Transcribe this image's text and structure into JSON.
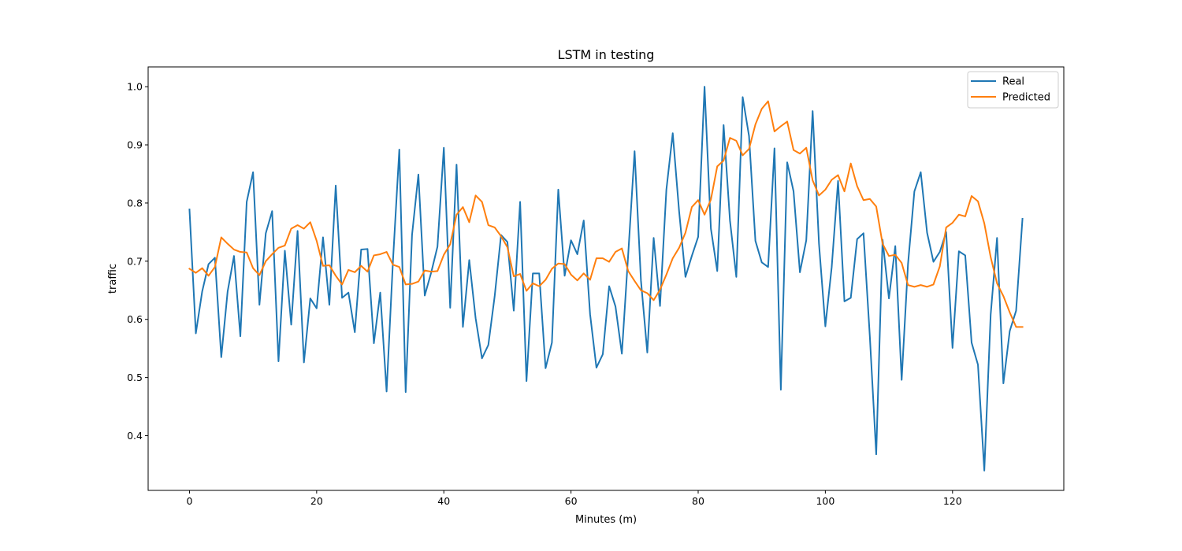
{
  "chart_data": {
    "type": "line",
    "title": "LSTM in testing",
    "xlabel": "Minutes (m)",
    "ylabel": "traffic",
    "xlim": [
      -6.5,
      137.5
    ],
    "ylim": [
      0.306,
      1.034
    ],
    "xticks": [
      0,
      20,
      40,
      60,
      80,
      100,
      120
    ],
    "yticks": [
      0.4,
      0.5,
      0.6,
      0.7,
      0.8,
      0.9,
      1.0
    ],
    "xtick_labels": [
      "0",
      "20",
      "40",
      "60",
      "80",
      "100",
      "120"
    ],
    "ytick_labels": [
      "0.4",
      "0.5",
      "0.6",
      "0.7",
      "0.8",
      "0.9",
      "1.0"
    ],
    "grid": false,
    "legend": "top-right",
    "series": [
      {
        "name": "Real",
        "color": "#1f77b4",
        "values": [
          0.789,
          0.576,
          0.648,
          0.695,
          0.706,
          0.535,
          0.648,
          0.709,
          0.571,
          0.802,
          0.853,
          0.625,
          0.748,
          0.786,
          0.528,
          0.718,
          0.591,
          0.752,
          0.526,
          0.636,
          0.619,
          0.741,
          0.625,
          0.83,
          0.637,
          0.646,
          0.578,
          0.72,
          0.721,
          0.559,
          0.646,
          0.476,
          0.7,
          0.892,
          0.475,
          0.745,
          0.849,
          0.641,
          0.68,
          0.725,
          0.895,
          0.62,
          0.866,
          0.587,
          0.702,
          0.602,
          0.533,
          0.556,
          0.64,
          0.745,
          0.733,
          0.615,
          0.802,
          0.494,
          0.679,
          0.679,
          0.516,
          0.56,
          0.823,
          0.675,
          0.736,
          0.712,
          0.77,
          0.609,
          0.517,
          0.54,
          0.657,
          0.622,
          0.541,
          0.712,
          0.889,
          0.667,
          0.543,
          0.74,
          0.623,
          0.823,
          0.92,
          0.786,
          0.673,
          0.709,
          0.742,
          1.0,
          0.756,
          0.683,
          0.934,
          0.77,
          0.673,
          0.982,
          0.915,
          0.735,
          0.698,
          0.69,
          0.894,
          0.479,
          0.87,
          0.82,
          0.681,
          0.736,
          0.958,
          0.73,
          0.588,
          0.69,
          0.838,
          0.631,
          0.637,
          0.738,
          0.748,
          0.57,
          0.368,
          0.737,
          0.636,
          0.726,
          0.496,
          0.695,
          0.82,
          0.853,
          0.749,
          0.699,
          0.716,
          0.75,
          0.551,
          0.717,
          0.71,
          0.56,
          0.522,
          0.34,
          0.608,
          0.74,
          0.49,
          0.58,
          0.615,
          0.773
        ]
      },
      {
        "name": "Predicted",
        "color": "#ff7f0e",
        "values": [
          0.687,
          0.68,
          0.688,
          0.675,
          0.69,
          0.741,
          0.73,
          0.72,
          0.716,
          0.715,
          0.688,
          0.676,
          0.7,
          0.712,
          0.723,
          0.727,
          0.756,
          0.762,
          0.756,
          0.767,
          0.735,
          0.692,
          0.693,
          0.675,
          0.66,
          0.685,
          0.681,
          0.692,
          0.682,
          0.71,
          0.712,
          0.716,
          0.694,
          0.69,
          0.66,
          0.661,
          0.665,
          0.684,
          0.682,
          0.683,
          0.711,
          0.729,
          0.78,
          0.793,
          0.767,
          0.813,
          0.802,
          0.762,
          0.758,
          0.743,
          0.724,
          0.674,
          0.678,
          0.649,
          0.662,
          0.657,
          0.668,
          0.687,
          0.696,
          0.695,
          0.677,
          0.667,
          0.679,
          0.668,
          0.705,
          0.705,
          0.699,
          0.716,
          0.722,
          0.683,
          0.666,
          0.65,
          0.645,
          0.633,
          0.651,
          0.677,
          0.705,
          0.723,
          0.749,
          0.793,
          0.805,
          0.78,
          0.806,
          0.863,
          0.873,
          0.912,
          0.907,
          0.882,
          0.893,
          0.935,
          0.962,
          0.975,
          0.923,
          0.932,
          0.94,
          0.891,
          0.885,
          0.895,
          0.839,
          0.813,
          0.823,
          0.84,
          0.848,
          0.82,
          0.868,
          0.829,
          0.805,
          0.807,
          0.794,
          0.73,
          0.709,
          0.711,
          0.697,
          0.659,
          0.656,
          0.659,
          0.656,
          0.66,
          0.691,
          0.758,
          0.766,
          0.78,
          0.777,
          0.812,
          0.803,
          0.765,
          0.707,
          0.662,
          0.64,
          0.612,
          0.587,
          0.587
        ]
      }
    ]
  }
}
